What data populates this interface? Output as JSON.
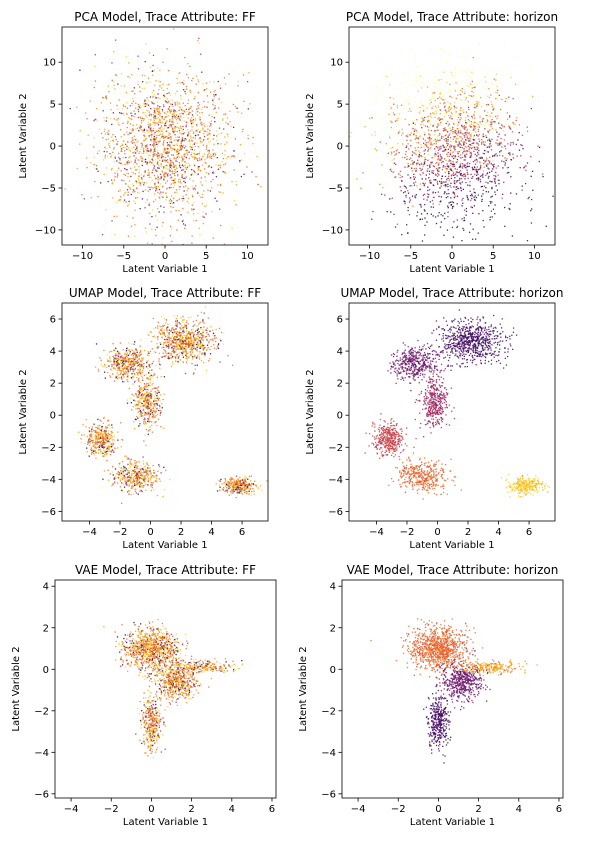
{
  "figure": {
    "background": "#ffffff",
    "point_palette": [
      "#1b0c41",
      "#4a0c6b",
      "#781c6d",
      "#a52c60",
      "#cf4446",
      "#ed6925",
      "#fb9b06",
      "#f7d13d",
      "#fcffa4"
    ]
  },
  "chart_data": [
    {
      "type": "scatter",
      "title": "PCA Model, Trace Attribute: FF",
      "xlabel": "Latent Variable 1",
      "ylabel": "Latent Variable 2",
      "xlim": [
        -12.5,
        12.5
      ],
      "ylim": [
        -11.8,
        14.2
      ],
      "xticks": [
        -10,
        -5,
        0,
        5,
        10
      ],
      "yticks": [
        -10,
        -5,
        0,
        5,
        10
      ],
      "grid": false,
      "legend": "none",
      "color_by": "FF",
      "colormap": "inferno",
      "distribution": {
        "shape": "disc",
        "center": [
          0,
          0
        ],
        "radius_x": 10.5,
        "radius_y": 11.5,
        "points": 1800
      }
    },
    {
      "type": "scatter",
      "title": "PCA Model, Trace Attribute: horizon",
      "xlabel": "Latent Variable 1",
      "ylabel": "Latent Variable 2",
      "xlim": [
        -12.5,
        12.5
      ],
      "ylim": [
        -11.8,
        14.2
      ],
      "xticks": [
        -10,
        -5,
        0,
        5,
        10
      ],
      "yticks": [
        -10,
        -5,
        0,
        5,
        10
      ],
      "grid": false,
      "legend": "none",
      "color_by": "horizon",
      "colormap": "inferno",
      "distribution": {
        "shape": "disc",
        "center": [
          0,
          0
        ],
        "radius_x": 10.5,
        "radius_y": 11.5,
        "points": 1800
      }
    },
    {
      "type": "scatter",
      "title": "UMAP Model, Trace Attribute: FF",
      "xlabel": "Latent Variable 1",
      "ylabel": "Latent Variable 2",
      "xlim": [
        -5.8,
        7.7
      ],
      "ylim": [
        -6.6,
        7.0
      ],
      "xticks": [
        -4,
        -2,
        0,
        2,
        4,
        6
      ],
      "yticks": [
        -6,
        -4,
        -2,
        0,
        2,
        4,
        6
      ],
      "grid": false,
      "legend": "none",
      "color_by": "FF",
      "colormap": "inferno",
      "clusters": [
        {
          "center": [
            2.2,
            4.6
          ],
          "spread": [
            2.0,
            1.3
          ],
          "points": 700
        },
        {
          "center": [
            -1.5,
            3.2
          ],
          "spread": [
            1.5,
            1.0
          ],
          "points": 420
        },
        {
          "center": [
            -0.2,
            0.8
          ],
          "spread": [
            0.9,
            1.6
          ],
          "points": 380
        },
        {
          "center": [
            -3.2,
            -1.5
          ],
          "spread": [
            1.0,
            1.0
          ],
          "points": 360
        },
        {
          "center": [
            -1.0,
            -3.8
          ],
          "spread": [
            1.6,
            1.0
          ],
          "points": 380
        },
        {
          "center": [
            5.8,
            -4.4
          ],
          "spread": [
            1.1,
            0.5
          ],
          "points": 300
        }
      ]
    },
    {
      "type": "scatter",
      "title": "UMAP Model, Trace Attribute: horizon",
      "xlabel": "Latent Variable 1",
      "ylabel": "Latent Variable 2",
      "xlim": [
        -5.8,
        7.7
      ],
      "ylim": [
        -6.6,
        7.0
      ],
      "xticks": [
        -4,
        -2,
        0,
        2,
        4,
        6
      ],
      "yticks": [
        -6,
        -4,
        -2,
        0,
        2,
        4,
        6
      ],
      "grid": false,
      "legend": "none",
      "color_by": "horizon",
      "colormap": "inferno",
      "clusters": [
        {
          "center": [
            2.2,
            4.6
          ],
          "spread": [
            2.0,
            1.3
          ],
          "points": 700,
          "color": "#4a0c6b"
        },
        {
          "center": [
            -1.5,
            3.2
          ],
          "spread": [
            1.5,
            1.0
          ],
          "points": 420,
          "color": "#781c6d"
        },
        {
          "center": [
            -0.2,
            0.8
          ],
          "spread": [
            0.9,
            1.6
          ],
          "points": 380,
          "color": "#a52c60"
        },
        {
          "center": [
            -3.2,
            -1.5
          ],
          "spread": [
            1.0,
            1.0
          ],
          "points": 360,
          "color": "#cf4446"
        },
        {
          "center": [
            -1.0,
            -3.8
          ],
          "spread": [
            1.6,
            1.0
          ],
          "points": 380,
          "color": "#ed6925"
        },
        {
          "center": [
            5.8,
            -4.4
          ],
          "spread": [
            1.1,
            0.5
          ],
          "points": 300,
          "color": "#f7d13d"
        }
      ]
    },
    {
      "type": "scatter",
      "title": "VAE Model, Trace Attribute: FF",
      "xlabel": "Latent Variable 1",
      "ylabel": "Latent Variable 2",
      "xlim": [
        -4.8,
        6.2
      ],
      "ylim": [
        -6.2,
        4.3
      ],
      "xticks": [
        -4,
        -2,
        0,
        2,
        4,
        6
      ],
      "yticks": [
        -6,
        -4,
        -2,
        0,
        2,
        4
      ],
      "grid": false,
      "legend": "none",
      "color_by": "FF",
      "colormap": "inferno",
      "clusters": [
        {
          "center": [
            0.0,
            1.0
          ],
          "spread": [
            1.4,
            1.0
          ],
          "points": 900
        },
        {
          "center": [
            1.2,
            -0.6
          ],
          "spread": [
            1.0,
            0.9
          ],
          "points": 500
        },
        {
          "center": [
            0.0,
            -2.5
          ],
          "spread": [
            0.5,
            1.3
          ],
          "points": 350
        },
        {
          "center": [
            2.5,
            0.1
          ],
          "spread": [
            1.6,
            0.3
          ],
          "points": 200
        }
      ]
    },
    {
      "type": "scatter",
      "title": "VAE Model, Trace Attribute: horizon",
      "xlabel": "Latent Variable 1",
      "ylabel": "Latent Variable 2",
      "xlim": [
        -4.8,
        6.2
      ],
      "ylim": [
        -6.2,
        4.3
      ],
      "xticks": [
        -4,
        -2,
        0,
        2,
        4,
        6
      ],
      "yticks": [
        -6,
        -4,
        -2,
        0,
        2,
        4
      ],
      "grid": false,
      "legend": "none",
      "color_by": "horizon",
      "colormap": "inferno",
      "clusters": [
        {
          "center": [
            0.0,
            1.0
          ],
          "spread": [
            1.4,
            1.0
          ],
          "points": 900,
          "color": "#ed6925"
        },
        {
          "center": [
            1.2,
            -0.6
          ],
          "spread": [
            1.0,
            0.9
          ],
          "points": 500,
          "color": "#781c6d"
        },
        {
          "center": [
            0.0,
            -2.5
          ],
          "spread": [
            0.5,
            1.3
          ],
          "points": 350,
          "color": "#4a0c6b"
        },
        {
          "center": [
            2.5,
            0.1
          ],
          "spread": [
            1.6,
            0.3
          ],
          "points": 200,
          "color": "#fb9b06"
        }
      ]
    }
  ]
}
